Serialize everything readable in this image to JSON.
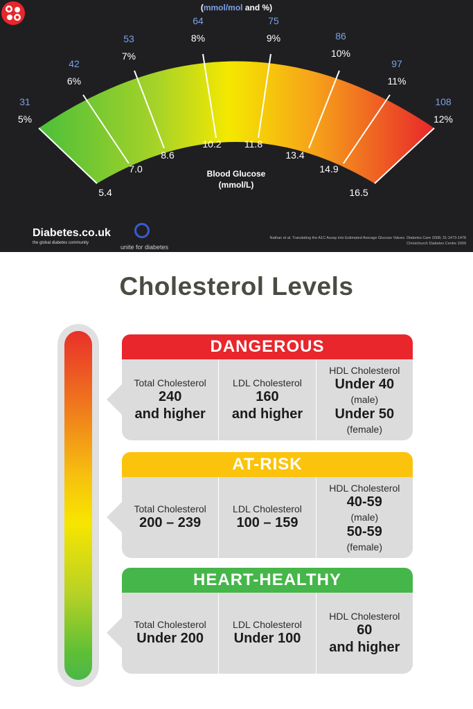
{
  "gauge": {
    "title_units": "mmol/mol",
    "title_rest": " and %)",
    "title_paren": "(",
    "mmol_mol_labels": [
      "31",
      "42",
      "53",
      "64",
      "75",
      "86",
      "97",
      "108"
    ],
    "percent_labels": [
      "5%",
      "6%",
      "7%",
      "8%",
      "9%",
      "10%",
      "11%",
      "12%"
    ],
    "glucose_labels": [
      "5.4",
      "7.0",
      "8.6",
      "10.2",
      "11.8",
      "13.4",
      "14.9",
      "16.5"
    ],
    "center_label_1": "Blood Glucose",
    "center_label_2": "(mmol/L)",
    "brand": "Diabetes.co.uk",
    "brand_tagline": "the global diabetes community",
    "unite_text": "unite for diabetes",
    "citation_1": "Nathan et al. Translating the A1C Assay into Estimated Average Glucose Values. Diabetes Care 2008; 31:1473-1478",
    "citation_2": "Christchurch Diabetes Centre 2009",
    "colors": {
      "green": "#4cbf3a",
      "yellow": "#f5e800",
      "orange": "#f6a11a",
      "red": "#e8262b",
      "blue_label": "#7ba1e6"
    }
  },
  "cholesterol": {
    "title": "Cholesterol Levels",
    "levels": [
      {
        "name": "DANGEROUS",
        "color": "#e8262b",
        "total_label": "Total Cholesterol",
        "total_value_1": "240",
        "total_value_2": "and higher",
        "ldl_label": "LDL Cholesterol",
        "ldl_value_1": "160",
        "ldl_value_2": "and higher",
        "hdl_label": "HDL Cholesterol",
        "hdl_male_value": "Under 40",
        "hdl_male_note": "(male)",
        "hdl_female_value": "Under 50",
        "hdl_female_note": "(female)"
      },
      {
        "name": "AT-RISK",
        "color": "#fbc30b",
        "total_label": "Total Cholesterol",
        "total_value": "200 – 239",
        "ldl_label": "LDL Cholesterol",
        "ldl_value": "100 – 159",
        "hdl_label": "HDL Cholesterol",
        "hdl_male_value": "40-59",
        "hdl_male_note": "(male)",
        "hdl_female_value": "50-59",
        "hdl_female_note": "(female)"
      },
      {
        "name": "HEART-HEALTHY",
        "color": "#45b649",
        "total_label": "Total Cholesterol",
        "total_value": "Under 200",
        "ldl_label": "LDL Cholesterol",
        "ldl_value": "Under 100",
        "hdl_label": "HDL Cholesterol",
        "hdl_value_1": "60",
        "hdl_value_2": "and higher"
      }
    ]
  }
}
